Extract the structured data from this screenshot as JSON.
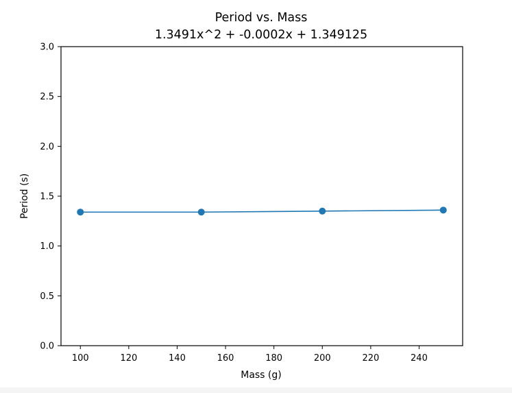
{
  "chart_data": {
    "type": "line",
    "title": "Period vs. Mass",
    "subtitle": "1.3491x^2 + -0.0002x + 1.349125",
    "xlabel": "Mass (g)",
    "ylabel": "Period (s)",
    "xlim": [
      92,
      258
    ],
    "ylim": [
      0,
      3
    ],
    "x_ticks": [
      100,
      120,
      140,
      160,
      180,
      200,
      220,
      240
    ],
    "y_ticks": [
      0.0,
      0.5,
      1.0,
      1.5,
      2.0,
      2.5,
      3.0
    ],
    "x_tick_labels": [
      "100",
      "120",
      "140",
      "160",
      "180",
      "200",
      "220",
      "240"
    ],
    "y_tick_labels": [
      "0.0",
      "0.5",
      "1.0",
      "1.5",
      "2.0",
      "2.5",
      "3.0"
    ],
    "grid": false,
    "series": [
      {
        "color": "#1f77b4",
        "x": [
          100,
          150,
          200,
          250
        ],
        "y": [
          1.34,
          1.34,
          1.35,
          1.36
        ],
        "yerr": [
          0.01,
          0.01,
          0.01,
          0.02
        ]
      }
    ]
  }
}
